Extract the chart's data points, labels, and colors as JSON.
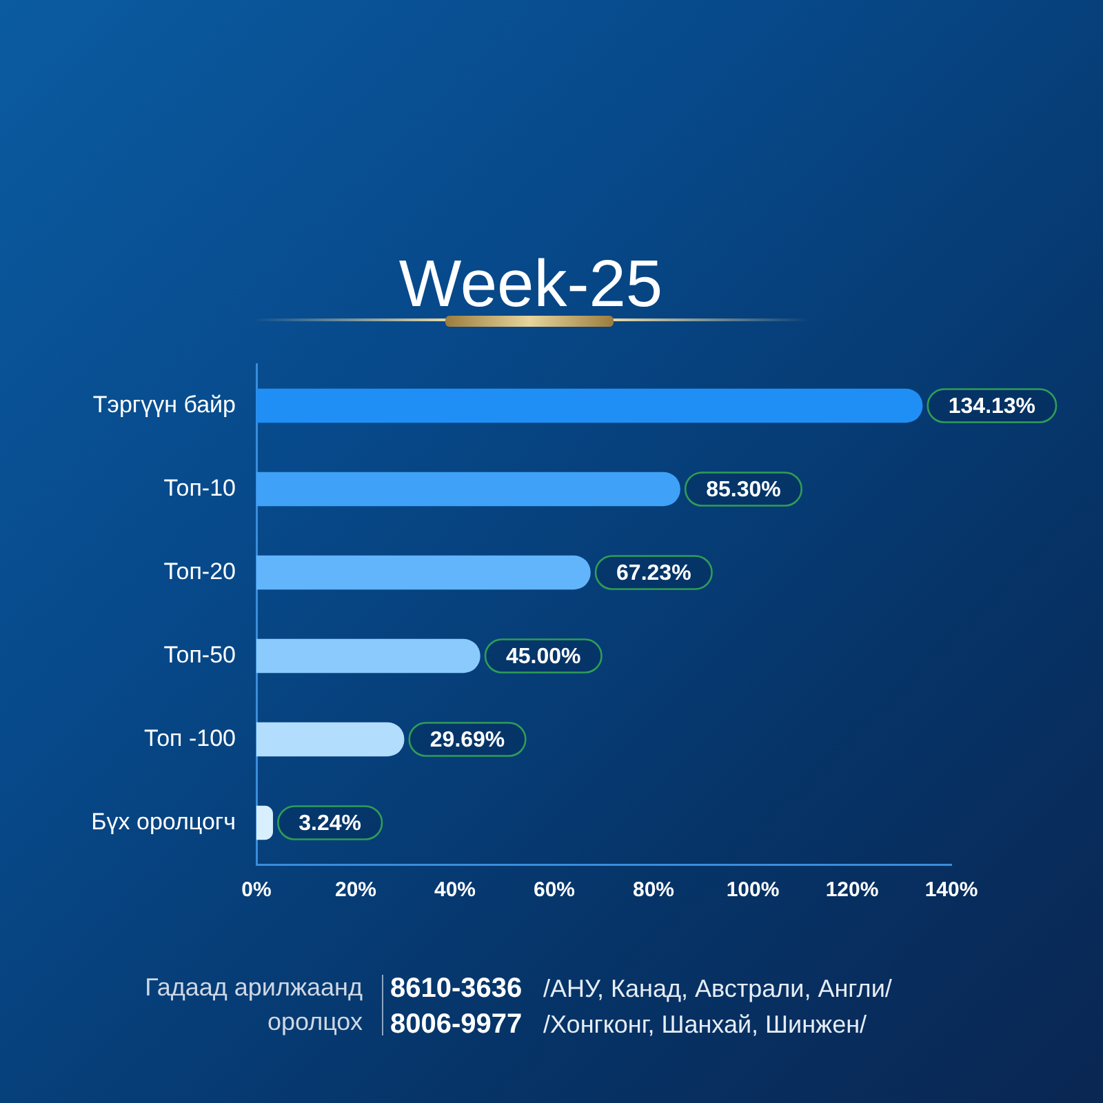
{
  "chart_data": {
    "type": "bar",
    "orientation": "horizontal",
    "title": "Week-25",
    "categories": [
      "Тэргүүн байр",
      "Топ-10",
      "Топ-20",
      "Топ-50",
      "Топ -100",
      "Бүх оролцогч"
    ],
    "values": [
      134.13,
      85.3,
      67.23,
      45.0,
      29.69,
      3.24
    ],
    "colors": [
      "#1f8ff5",
      "#3fa2f8",
      "#62b5fa",
      "#8acafc",
      "#b2ddfd",
      "#d8effe"
    ],
    "value_labels": [
      "134.13%",
      "85.30%",
      "67.23%",
      "45.00%",
      "29.69%",
      "3.24%"
    ],
    "xlim": [
      0,
      140
    ],
    "xticks": [
      {
        "value": 0,
        "label": "0%"
      },
      {
        "value": 20,
        "label": "20%"
      },
      {
        "value": 40,
        "label": "40%"
      },
      {
        "value": 60,
        "label": "60%"
      },
      {
        "value": 80,
        "label": "80%"
      },
      {
        "value": 100,
        "label": "100%"
      },
      {
        "value": 120,
        "label": "120%"
      },
      {
        "value": 140,
        "label": "140%"
      }
    ],
    "annotations": [
      "Гадаад арилжаанд оролцох",
      "8610-3636",
      "/АНУ, Канад, Австрали, Англи/",
      "8006-9977",
      "/Хонгконг, Шанхай, Шинжен/"
    ]
  }
}
